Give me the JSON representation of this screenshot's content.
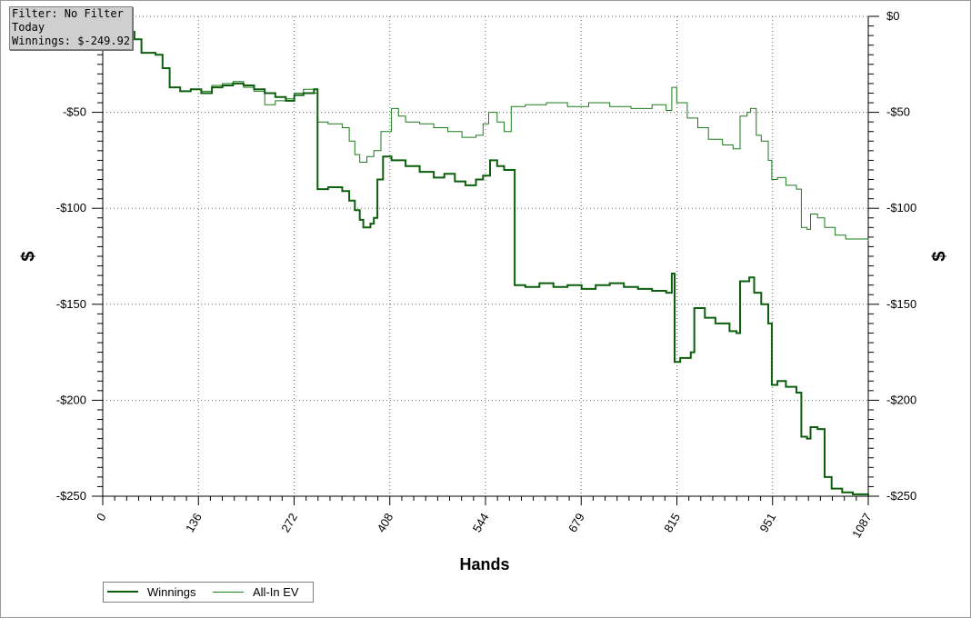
{
  "filter_box": {
    "line1": "Filter: No Filter",
    "line2": "Today",
    "line3": "Winnings: $-249.92"
  },
  "colors": {
    "winnings": "#0c5f0c",
    "allin_ev": "#1b7a1b",
    "grid": "#6a6a6a",
    "axis": "#000000"
  },
  "chart_data": {
    "type": "line",
    "xlabel": "Hands",
    "ylabel_left": "$",
    "ylabel_right": "$",
    "xlim": [
      0,
      1087
    ],
    "ylim": [
      -250,
      0
    ],
    "x_ticks": [
      "0",
      "136",
      "272",
      "408",
      "544",
      "679",
      "815",
      "951",
      "1087"
    ],
    "y_ticks": [
      "$0",
      "-$50",
      "-$100",
      "-$150",
      "-$200",
      "-$250"
    ],
    "grid": true,
    "legend_position": "bottom-left",
    "series": [
      {
        "name": "Winnings",
        "points": [
          [
            0,
            -3
          ],
          [
            15,
            -4
          ],
          [
            30,
            -8
          ],
          [
            45,
            -12
          ],
          [
            55,
            -19
          ],
          [
            75,
            -20
          ],
          [
            85,
            -27
          ],
          [
            95,
            -37
          ],
          [
            110,
            -39
          ],
          [
            125,
            -38
          ],
          [
            140,
            -40
          ],
          [
            155,
            -37
          ],
          [
            170,
            -36
          ],
          [
            185,
            -35
          ],
          [
            200,
            -36
          ],
          [
            215,
            -38
          ],
          [
            230,
            -40
          ],
          [
            245,
            -42
          ],
          [
            260,
            -44
          ],
          [
            272,
            -41
          ],
          [
            285,
            -40
          ],
          [
            300,
            -38
          ],
          [
            305,
            -90
          ],
          [
            320,
            -89
          ],
          [
            340,
            -91
          ],
          [
            350,
            -96
          ],
          [
            358,
            -101
          ],
          [
            365,
            -106
          ],
          [
            370,
            -110
          ],
          [
            380,
            -108
          ],
          [
            385,
            -105
          ],
          [
            390,
            -85
          ],
          [
            398,
            -73
          ],
          [
            410,
            -75
          ],
          [
            430,
            -78
          ],
          [
            450,
            -81
          ],
          [
            470,
            -84
          ],
          [
            485,
            -82
          ],
          [
            500,
            -86
          ],
          [
            515,
            -88
          ],
          [
            530,
            -85
          ],
          [
            540,
            -83
          ],
          [
            550,
            -75
          ],
          [
            560,
            -78
          ],
          [
            570,
            -80
          ],
          [
            585,
            -140
          ],
          [
            600,
            -141
          ],
          [
            620,
            -139
          ],
          [
            640,
            -141
          ],
          [
            660,
            -140
          ],
          [
            680,
            -142
          ],
          [
            700,
            -140
          ],
          [
            720,
            -139
          ],
          [
            740,
            -141
          ],
          [
            760,
            -142
          ],
          [
            780,
            -143
          ],
          [
            800,
            -144
          ],
          [
            808,
            -134
          ],
          [
            812,
            -180
          ],
          [
            820,
            -178
          ],
          [
            835,
            -175
          ],
          [
            840,
            -152
          ],
          [
            855,
            -157
          ],
          [
            870,
            -160
          ],
          [
            890,
            -164
          ],
          [
            900,
            -165
          ],
          [
            905,
            -138
          ],
          [
            918,
            -136
          ],
          [
            925,
            -144
          ],
          [
            935,
            -150
          ],
          [
            945,
            -160
          ],
          [
            950,
            -192
          ],
          [
            958,
            -190
          ],
          [
            970,
            -193
          ],
          [
            985,
            -196
          ],
          [
            992,
            -219
          ],
          [
            1000,
            -220
          ],
          [
            1005,
            -214
          ],
          [
            1015,
            -215
          ],
          [
            1025,
            -240
          ],
          [
            1035,
            -246
          ],
          [
            1050,
            -248
          ],
          [
            1065,
            -249
          ],
          [
            1087,
            -249.92
          ]
        ]
      },
      {
        "name": "All-In EV",
        "points": [
          [
            0,
            -3
          ],
          [
            15,
            -4
          ],
          [
            30,
            -8
          ],
          [
            45,
            -12
          ],
          [
            55,
            -19
          ],
          [
            75,
            -20
          ],
          [
            85,
            -27
          ],
          [
            95,
            -37
          ],
          [
            110,
            -39
          ],
          [
            125,
            -38
          ],
          [
            140,
            -39
          ],
          [
            155,
            -36
          ],
          [
            170,
            -35
          ],
          [
            185,
            -34
          ],
          [
            200,
            -37
          ],
          [
            215,
            -39
          ],
          [
            230,
            -46
          ],
          [
            245,
            -44
          ],
          [
            260,
            -43
          ],
          [
            272,
            -40
          ],
          [
            285,
            -38
          ],
          [
            300,
            -40
          ],
          [
            305,
            -55
          ],
          [
            320,
            -56
          ],
          [
            340,
            -58
          ],
          [
            350,
            -65
          ],
          [
            358,
            -72
          ],
          [
            365,
            -76
          ],
          [
            375,
            -73
          ],
          [
            385,
            -70
          ],
          [
            395,
            -60
          ],
          [
            410,
            -48
          ],
          [
            420,
            -52
          ],
          [
            430,
            -55
          ],
          [
            450,
            -56
          ],
          [
            470,
            -58
          ],
          [
            490,
            -60
          ],
          [
            510,
            -63
          ],
          [
            530,
            -62
          ],
          [
            540,
            -56
          ],
          [
            548,
            -50
          ],
          [
            560,
            -55
          ],
          [
            570,
            -60
          ],
          [
            580,
            -47
          ],
          [
            600,
            -46
          ],
          [
            630,
            -45
          ],
          [
            660,
            -47
          ],
          [
            690,
            -45
          ],
          [
            720,
            -47
          ],
          [
            750,
            -48
          ],
          [
            780,
            -46
          ],
          [
            800,
            -49
          ],
          [
            808,
            -37
          ],
          [
            815,
            -45
          ],
          [
            830,
            -53
          ],
          [
            845,
            -58
          ],
          [
            860,
            -64
          ],
          [
            880,
            -67
          ],
          [
            895,
            -69
          ],
          [
            905,
            -52
          ],
          [
            915,
            -50
          ],
          [
            920,
            -48
          ],
          [
            928,
            -62
          ],
          [
            935,
            -65
          ],
          [
            945,
            -75
          ],
          [
            950,
            -85
          ],
          [
            958,
            -84
          ],
          [
            970,
            -88
          ],
          [
            985,
            -90
          ],
          [
            992,
            -110
          ],
          [
            1000,
            -111
          ],
          [
            1005,
            -103
          ],
          [
            1015,
            -105
          ],
          [
            1025,
            -110
          ],
          [
            1040,
            -114
          ],
          [
            1055,
            -116
          ],
          [
            1070,
            -116
          ],
          [
            1087,
            -117
          ]
        ]
      }
    ]
  }
}
